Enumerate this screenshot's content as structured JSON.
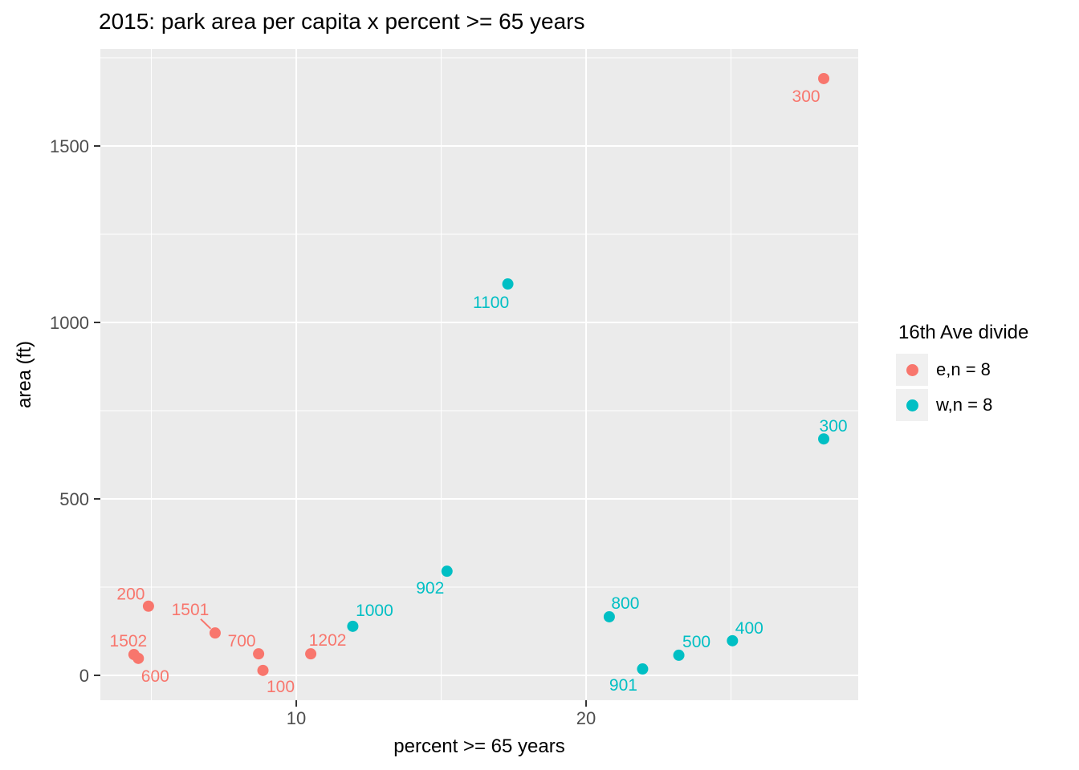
{
  "chart_data": {
    "type": "scatter",
    "title": "2015: park area per capita x percent >= 65 years",
    "xlabel": "percent >= 65 years",
    "ylabel": "area (ft)",
    "xlim": [
      3.24,
      29.39
    ],
    "ylim": [
      -70.5,
      1775
    ],
    "x_major_ticks": [
      10,
      20
    ],
    "x_minor_ticks": [
      5,
      15,
      25
    ],
    "y_major_ticks": [
      0,
      500,
      1000,
      1500
    ],
    "y_minor_ticks": [
      250,
      750,
      1250,
      1750
    ],
    "grid": true,
    "legend": {
      "title": "16th Ave divide",
      "position": "right",
      "entries": [
        {
          "label": "e,n = 8",
          "color": "#F8766D"
        },
        {
          "label": "w,n = 8",
          "color": "#00BFC4"
        }
      ]
    },
    "series": [
      {
        "name": "e,n = 8",
        "color": "#F8766D",
        "points": [
          {
            "label": "300",
            "x": 28.2,
            "y": 1691,
            "label_dx": -22,
            "label_dy": 21
          },
          {
            "label": "200",
            "x": 4.9,
            "y": 196,
            "label_dx": -22,
            "label_dy": -16
          },
          {
            "label": "1501",
            "x": 7.2,
            "y": 120,
            "label_dx": -31,
            "label_dy": -30,
            "leader": true
          },
          {
            "label": "1502",
            "x": 4.4,
            "y": 59,
            "label_dx": -7,
            "label_dy": -18
          },
          {
            "label": "600",
            "x": 4.55,
            "y": 48,
            "label_dx": 21,
            "label_dy": 21
          },
          {
            "label": "700",
            "x": 8.7,
            "y": 61,
            "label_dx": -21,
            "label_dy": -17
          },
          {
            "label": "100",
            "x": 8.85,
            "y": 14,
            "label_dx": 22,
            "label_dy": 19
          },
          {
            "label": "1202",
            "x": 10.5,
            "y": 61,
            "label_dx": 21,
            "label_dy": -18
          }
        ]
      },
      {
        "name": "w,n = 8",
        "color": "#00BFC4",
        "points": [
          {
            "label": "1100",
            "x": 17.3,
            "y": 1109,
            "label_dx": -21,
            "label_dy": 22
          },
          {
            "label": "300",
            "x": 28.2,
            "y": 670,
            "label_dx": 12,
            "label_dy": -17
          },
          {
            "label": "902",
            "x": 15.2,
            "y": 295,
            "label_dx": -21,
            "label_dy": 20
          },
          {
            "label": "1000",
            "x": 11.95,
            "y": 139,
            "label_dx": 27,
            "label_dy": -21
          },
          {
            "label": "800",
            "x": 20.8,
            "y": 166,
            "label_dx": 20,
            "label_dy": -18
          },
          {
            "label": "500",
            "x": 23.2,
            "y": 57,
            "label_dx": 22,
            "label_dy": -18
          },
          {
            "label": "400",
            "x": 25.05,
            "y": 98,
            "label_dx": 21,
            "label_dy": -17
          },
          {
            "label": "901",
            "x": 21.95,
            "y": 18,
            "label_dx": -24,
            "label_dy": 19
          }
        ]
      }
    ],
    "style": {
      "panel_bg": "#EBEBEB",
      "grid_color": "#FFFFFF",
      "tick_text_color": "#4D4D4D",
      "tick_mark_color": "#333333",
      "point_radius": 7,
      "point_label_font_size": 21,
      "tick_label_font_size": 22
    }
  }
}
